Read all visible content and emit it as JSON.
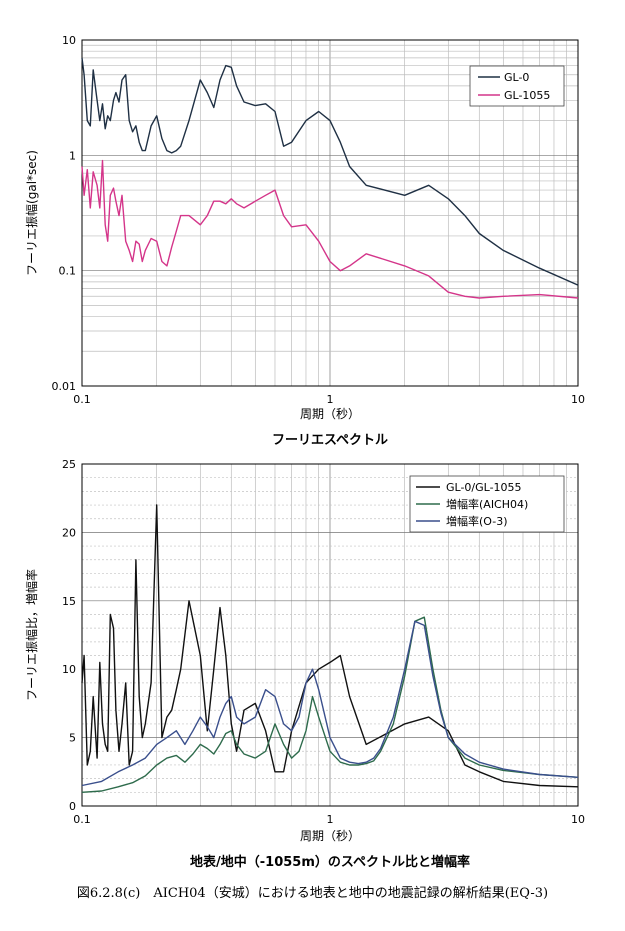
{
  "caption": "図6.2.8(c)　AICH04（安城）における地表と地中の地震記録の解析結果(EQ-3)",
  "chart_data": [
    {
      "type": "line",
      "title": "フーリエスペクトル",
      "xlabel": "周期（秒）",
      "ylabel": "フーリエ振幅(gal*sec)",
      "xscale": "log",
      "yscale": "log",
      "xlim": [
        0.1,
        10
      ],
      "ylim": [
        0.01,
        10
      ],
      "xticks": [
        "0.1",
        "1",
        "10"
      ],
      "yticks": [
        "0.01",
        "0.1",
        "1",
        "10"
      ],
      "grid": true,
      "legend": "top-right",
      "series": [
        {
          "name": "GL-0",
          "color": "#1f3044",
          "x": [
            0.1,
            0.102,
            0.105,
            0.108,
            0.111,
            0.115,
            0.118,
            0.121,
            0.124,
            0.127,
            0.13,
            0.134,
            0.137,
            0.141,
            0.145,
            0.15,
            0.155,
            0.16,
            0.165,
            0.17,
            0.175,
            0.18,
            0.19,
            0.2,
            0.21,
            0.22,
            0.23,
            0.24,
            0.25,
            0.27,
            0.3,
            0.32,
            0.34,
            0.36,
            0.38,
            0.4,
            0.42,
            0.45,
            0.5,
            0.55,
            0.6,
            0.65,
            0.7,
            0.8,
            0.9,
            1.0,
            1.1,
            1.2,
            1.4,
            2.0,
            2.5,
            3.0,
            3.5,
            4.0,
            5.0,
            7.0,
            10.0
          ],
          "y": [
            7.0,
            5.0,
            2.0,
            1.8,
            5.5,
            3.0,
            2.0,
            2.8,
            1.7,
            2.2,
            2.0,
            3.0,
            3.5,
            2.9,
            4.5,
            5.0,
            2.0,
            1.6,
            1.8,
            1.3,
            1.1,
            1.1,
            1.8,
            2.2,
            1.4,
            1.1,
            1.05,
            1.1,
            1.2,
            2.0,
            4.5,
            3.5,
            2.6,
            4.5,
            6.0,
            5.8,
            4.0,
            2.9,
            2.7,
            2.8,
            2.4,
            1.2,
            1.3,
            2.0,
            2.4,
            2.0,
            1.3,
            0.8,
            0.55,
            0.45,
            0.55,
            0.42,
            0.3,
            0.21,
            0.15,
            0.105,
            0.075
          ]
        },
        {
          "name": "GL-1055",
          "color": "#d4358a",
          "x": [
            0.1,
            0.102,
            0.105,
            0.108,
            0.111,
            0.115,
            0.118,
            0.121,
            0.124,
            0.127,
            0.13,
            0.134,
            0.137,
            0.141,
            0.145,
            0.15,
            0.155,
            0.16,
            0.165,
            0.17,
            0.175,
            0.18,
            0.19,
            0.2,
            0.21,
            0.22,
            0.23,
            0.24,
            0.25,
            0.27,
            0.3,
            0.32,
            0.34,
            0.36,
            0.38,
            0.4,
            0.42,
            0.45,
            0.5,
            0.55,
            0.6,
            0.65,
            0.7,
            0.8,
            0.9,
            1.0,
            1.1,
            1.2,
            1.4,
            2.0,
            2.5,
            3.0,
            3.5,
            4.0,
            5.0,
            7.0,
            10.0
          ],
          "y": [
            0.8,
            0.45,
            0.75,
            0.35,
            0.72,
            0.55,
            0.35,
            0.9,
            0.25,
            0.18,
            0.45,
            0.52,
            0.4,
            0.3,
            0.45,
            0.18,
            0.15,
            0.12,
            0.18,
            0.17,
            0.12,
            0.15,
            0.19,
            0.18,
            0.12,
            0.11,
            0.16,
            0.22,
            0.3,
            0.3,
            0.25,
            0.3,
            0.4,
            0.4,
            0.38,
            0.42,
            0.38,
            0.35,
            0.4,
            0.45,
            0.5,
            0.3,
            0.24,
            0.25,
            0.18,
            0.12,
            0.1,
            0.11,
            0.14,
            0.11,
            0.09,
            0.065,
            0.06,
            0.058,
            0.06,
            0.062,
            0.058
          ]
        }
      ]
    },
    {
      "type": "line",
      "title": "地表/地中（-1055m）のスペクトル比と増幅率",
      "xlabel": "周期（秒）",
      "ylabel": "フーリエ振幅比，増幅率",
      "xscale": "log",
      "xlim": [
        0.1,
        10
      ],
      "ylim": [
        0,
        25
      ],
      "xticks": [
        "0.1",
        "1",
        "10"
      ],
      "yticks": [
        "0",
        "5",
        "10",
        "15",
        "20",
        "25"
      ],
      "grid": true,
      "legend": "top-right",
      "series": [
        {
          "name": "GL-0/GL-1055",
          "color": "#111111",
          "x": [
            0.1,
            0.102,
            0.105,
            0.108,
            0.111,
            0.115,
            0.118,
            0.121,
            0.124,
            0.127,
            0.13,
            0.134,
            0.137,
            0.141,
            0.145,
            0.15,
            0.155,
            0.16,
            0.165,
            0.17,
            0.175,
            0.18,
            0.19,
            0.2,
            0.21,
            0.22,
            0.23,
            0.24,
            0.25,
            0.27,
            0.3,
            0.32,
            0.34,
            0.36,
            0.38,
            0.4,
            0.42,
            0.45,
            0.5,
            0.55,
            0.6,
            0.65,
            0.7,
            0.8,
            0.9,
            1.0,
            1.1,
            1.2,
            1.4,
            2.0,
            2.5,
            3.0,
            3.5,
            4.0,
            5.0,
            7.0,
            10.0
          ],
          "y": [
            9.0,
            11.0,
            3.0,
            4.0,
            8.0,
            3.5,
            10.5,
            6.0,
            4.5,
            4.0,
            14.0,
            13.0,
            7.0,
            4.0,
            6.0,
            9.0,
            3.0,
            4.0,
            18.0,
            8.0,
            5.0,
            6.0,
            9.0,
            22.0,
            5.0,
            6.5,
            7.0,
            8.5,
            10.0,
            15.0,
            11.0,
            5.5,
            10.0,
            14.5,
            11.0,
            6.0,
            4.0,
            7.0,
            7.5,
            5.5,
            2.5,
            2.5,
            5.5,
            9.0,
            10.0,
            10.5,
            11.0,
            8.0,
            4.5,
            6.0,
            6.5,
            5.5,
            3.0,
            2.5,
            1.8,
            1.5,
            1.4
          ]
        },
        {
          "name": "増幅率(AICH04)",
          "color": "#2e6b4c",
          "x": [
            0.1,
            0.12,
            0.14,
            0.16,
            0.18,
            0.2,
            0.22,
            0.24,
            0.26,
            0.28,
            0.3,
            0.32,
            0.34,
            0.36,
            0.38,
            0.4,
            0.42,
            0.45,
            0.5,
            0.55,
            0.6,
            0.65,
            0.7,
            0.75,
            0.8,
            0.85,
            0.9,
            1.0,
            1.1,
            1.2,
            1.3,
            1.4,
            1.5,
            1.6,
            1.8,
            2.0,
            2.2,
            2.4,
            2.6,
            2.8,
            3.0,
            3.5,
            4.0,
            5.0,
            7.0,
            10.0
          ],
          "y": [
            1.0,
            1.1,
            1.4,
            1.7,
            2.2,
            3.0,
            3.5,
            3.7,
            3.2,
            3.8,
            4.5,
            4.2,
            3.8,
            4.5,
            5.3,
            5.5,
            4.5,
            3.8,
            3.5,
            4.0,
            6.0,
            4.5,
            3.5,
            4.0,
            5.5,
            8.0,
            6.5,
            4.0,
            3.2,
            3.0,
            3.0,
            3.1,
            3.3,
            4.0,
            6.0,
            9.5,
            13.5,
            13.8,
            10.0,
            7.0,
            5.0,
            3.5,
            3.0,
            2.6,
            2.3,
            2.1
          ]
        },
        {
          "name": "増幅率(O-3)",
          "color": "#3a4f8c",
          "x": [
            0.1,
            0.12,
            0.14,
            0.16,
            0.18,
            0.2,
            0.22,
            0.24,
            0.26,
            0.28,
            0.3,
            0.32,
            0.34,
            0.36,
            0.38,
            0.4,
            0.42,
            0.45,
            0.5,
            0.55,
            0.6,
            0.65,
            0.7,
            0.75,
            0.8,
            0.85,
            0.9,
            1.0,
            1.1,
            1.2,
            1.3,
            1.4,
            1.5,
            1.6,
            1.8,
            2.0,
            2.2,
            2.4,
            2.6,
            2.8,
            3.0,
            3.5,
            4.0,
            5.0,
            7.0,
            10.0
          ],
          "y": [
            1.5,
            1.8,
            2.5,
            3.0,
            3.5,
            4.5,
            5.0,
            5.5,
            4.5,
            5.5,
            6.5,
            5.8,
            5.0,
            6.5,
            7.5,
            8.0,
            6.5,
            6.0,
            6.5,
            8.5,
            8.0,
            6.0,
            5.5,
            6.5,
            9.0,
            10.0,
            8.5,
            5.0,
            3.5,
            3.2,
            3.1,
            3.2,
            3.5,
            4.2,
            6.5,
            10.0,
            13.5,
            13.2,
            9.5,
            6.8,
            5.0,
            3.8,
            3.2,
            2.7,
            2.3,
            2.1
          ]
        }
      ]
    }
  ]
}
